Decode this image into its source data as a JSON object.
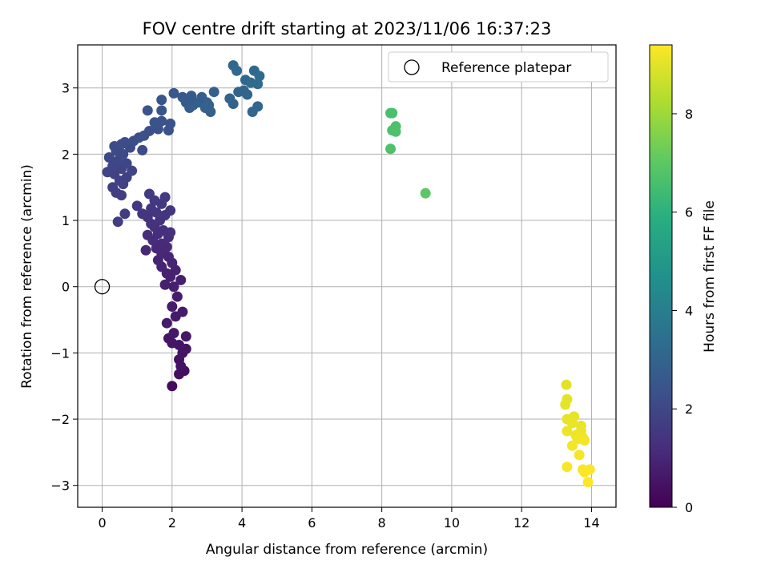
{
  "chart_data": {
    "type": "scatter",
    "title": "FOV centre drift starting at 2023/11/06 16:37:23",
    "xlabel": "Angular distance from reference (arcmin)",
    "ylabel": "Rotation from reference (arcmin)",
    "xlim": [
      -0.7,
      14.7
    ],
    "ylim": [
      -3.33,
      3.65
    ],
    "xticks": [
      0,
      2,
      4,
      6,
      8,
      10,
      12,
      14
    ],
    "yticks": [
      -3,
      -2,
      -1,
      0,
      1,
      2,
      3
    ],
    "grid": true,
    "legend": {
      "placement": "top-right",
      "entries": [
        "Reference platepar"
      ]
    },
    "reference_point": {
      "name": "Reference platepar",
      "x": 0,
      "y": 0
    },
    "colorbar": {
      "label": "Hours from first FF file",
      "range": [
        0,
        9.4
      ],
      "ticks": [
        0,
        2,
        4,
        6,
        8
      ],
      "colormap": "viridis"
    },
    "points": [
      {
        "x": 2.0,
        "y": -1.5,
        "h": 0.3
      },
      {
        "x": 2.2,
        "y": -1.32,
        "h": 0.35
      },
      {
        "x": 2.35,
        "y": -1.27,
        "h": 0.38
      },
      {
        "x": 2.25,
        "y": -1.2,
        "h": 0.42
      },
      {
        "x": 2.2,
        "y": -1.1,
        "h": 0.45
      },
      {
        "x": 2.3,
        "y": -1.0,
        "h": 0.48
      },
      {
        "x": 2.4,
        "y": -0.94,
        "h": 0.5
      },
      {
        "x": 2.2,
        "y": -0.88,
        "h": 0.52
      },
      {
        "x": 2.0,
        "y": -0.85,
        "h": 0.55
      },
      {
        "x": 1.9,
        "y": -0.78,
        "h": 0.57
      },
      {
        "x": 2.4,
        "y": -0.75,
        "h": 0.6
      },
      {
        "x": 2.05,
        "y": -0.7,
        "h": 0.62
      },
      {
        "x": 1.85,
        "y": -0.55,
        "h": 0.65
      },
      {
        "x": 2.1,
        "y": -0.45,
        "h": 0.68
      },
      {
        "x": 2.3,
        "y": -0.38,
        "h": 0.7
      },
      {
        "x": 2.0,
        "y": -0.3,
        "h": 0.72
      },
      {
        "x": 2.15,
        "y": -0.15,
        "h": 0.75
      },
      {
        "x": 2.05,
        "y": 0.0,
        "h": 0.78
      },
      {
        "x": 1.8,
        "y": 0.03,
        "h": 0.8
      },
      {
        "x": 2.25,
        "y": 0.1,
        "h": 0.82
      },
      {
        "x": 1.95,
        "y": 0.15,
        "h": 0.85
      },
      {
        "x": 1.85,
        "y": 0.2,
        "h": 0.88
      },
      {
        "x": 2.1,
        "y": 0.25,
        "h": 0.9
      },
      {
        "x": 1.7,
        "y": 0.3,
        "h": 0.92
      },
      {
        "x": 2.0,
        "y": 0.36,
        "h": 0.95
      },
      {
        "x": 1.6,
        "y": 0.4,
        "h": 0.97
      },
      {
        "x": 1.9,
        "y": 0.45,
        "h": 1.0
      },
      {
        "x": 1.7,
        "y": 0.5,
        "h": 1.02
      },
      {
        "x": 1.25,
        "y": 0.55,
        "h": 1.05
      },
      {
        "x": 1.55,
        "y": 0.58,
        "h": 1.08
      },
      {
        "x": 1.85,
        "y": 0.6,
        "h": 1.1
      },
      {
        "x": 1.7,
        "y": 0.65,
        "h": 1.12
      },
      {
        "x": 1.45,
        "y": 0.7,
        "h": 1.15
      },
      {
        "x": 1.9,
        "y": 0.75,
        "h": 1.18
      },
      {
        "x": 1.3,
        "y": 0.78,
        "h": 1.2
      },
      {
        "x": 1.6,
        "y": 0.8,
        "h": 1.22
      },
      {
        "x": 1.75,
        "y": 0.85,
        "h": 1.25
      },
      {
        "x": 1.5,
        "y": 0.9,
        "h": 1.28
      },
      {
        "x": 1.95,
        "y": 0.82,
        "h": 1.3
      },
      {
        "x": 1.4,
        "y": 0.95,
        "h": 1.32
      },
      {
        "x": 1.65,
        "y": 1.0,
        "h": 1.35
      },
      {
        "x": 1.3,
        "y": 1.05,
        "h": 1.38
      },
      {
        "x": 1.8,
        "y": 1.08,
        "h": 1.4
      },
      {
        "x": 1.15,
        "y": 1.1,
        "h": 1.42
      },
      {
        "x": 1.55,
        "y": 1.12,
        "h": 1.45
      },
      {
        "x": 1.95,
        "y": 1.15,
        "h": 1.48
      },
      {
        "x": 1.4,
        "y": 1.18,
        "h": 1.5
      },
      {
        "x": 1.0,
        "y": 1.22,
        "h": 1.52
      },
      {
        "x": 1.7,
        "y": 1.25,
        "h": 1.55
      },
      {
        "x": 1.5,
        "y": 1.3,
        "h": 1.57
      },
      {
        "x": 1.8,
        "y": 1.35,
        "h": 1.6
      },
      {
        "x": 1.35,
        "y": 1.4,
        "h": 1.62
      },
      {
        "x": 0.45,
        "y": 0.98,
        "h": 1.65
      },
      {
        "x": 0.65,
        "y": 1.1,
        "h": 1.68
      },
      {
        "x": 0.55,
        "y": 1.38,
        "h": 1.7
      },
      {
        "x": 0.4,
        "y": 1.42,
        "h": 1.72
      },
      {
        "x": 0.3,
        "y": 1.5,
        "h": 1.75
      },
      {
        "x": 0.6,
        "y": 1.55,
        "h": 1.78
      },
      {
        "x": 0.5,
        "y": 1.6,
        "h": 1.8
      },
      {
        "x": 0.7,
        "y": 1.65,
        "h": 1.82
      },
      {
        "x": 0.35,
        "y": 1.7,
        "h": 1.85
      },
      {
        "x": 0.15,
        "y": 1.73,
        "h": 1.88
      },
      {
        "x": 0.85,
        "y": 1.75,
        "h": 1.9
      },
      {
        "x": 0.55,
        "y": 1.78,
        "h": 1.92
      },
      {
        "x": 0.3,
        "y": 1.82,
        "h": 1.95
      },
      {
        "x": 0.7,
        "y": 1.86,
        "h": 1.98
      },
      {
        "x": 0.45,
        "y": 1.9,
        "h": 2.0
      },
      {
        "x": 0.2,
        "y": 1.95,
        "h": 2.02
      },
      {
        "x": 0.6,
        "y": 2.0,
        "h": 2.05
      },
      {
        "x": 0.4,
        "y": 2.05,
        "h": 2.08
      },
      {
        "x": 0.8,
        "y": 2.1,
        "h": 2.1
      },
      {
        "x": 1.15,
        "y": 2.06,
        "h": 2.12
      },
      {
        "x": 0.35,
        "y": 2.12,
        "h": 2.15
      },
      {
        "x": 0.55,
        "y": 2.15,
        "h": 2.18
      },
      {
        "x": 0.65,
        "y": 2.18,
        "h": 2.2
      },
      {
        "x": 0.9,
        "y": 2.2,
        "h": 2.22
      },
      {
        "x": 1.05,
        "y": 2.25,
        "h": 2.25
      },
      {
        "x": 1.2,
        "y": 2.28,
        "h": 2.28
      },
      {
        "x": 1.35,
        "y": 2.35,
        "h": 2.3
      },
      {
        "x": 1.6,
        "y": 2.38,
        "h": 2.32
      },
      {
        "x": 1.9,
        "y": 2.36,
        "h": 2.35
      },
      {
        "x": 1.5,
        "y": 2.48,
        "h": 2.38
      },
      {
        "x": 1.7,
        "y": 2.5,
        "h": 2.4
      },
      {
        "x": 1.95,
        "y": 2.46,
        "h": 2.42
      },
      {
        "x": 1.3,
        "y": 2.66,
        "h": 2.45
      },
      {
        "x": 1.7,
        "y": 2.66,
        "h": 2.48
      },
      {
        "x": 1.7,
        "y": 2.82,
        "h": 2.5
      },
      {
        "x": 2.05,
        "y": 2.92,
        "h": 2.55
      },
      {
        "x": 2.3,
        "y": 2.86,
        "h": 2.6
      },
      {
        "x": 2.55,
        "y": 2.88,
        "h": 2.65
      },
      {
        "x": 2.4,
        "y": 2.78,
        "h": 2.7
      },
      {
        "x": 2.6,
        "y": 2.74,
        "h": 2.72
      },
      {
        "x": 2.5,
        "y": 2.7,
        "h": 2.75
      },
      {
        "x": 2.85,
        "y": 2.86,
        "h": 2.78
      },
      {
        "x": 2.75,
        "y": 2.78,
        "h": 2.8
      },
      {
        "x": 3.0,
        "y": 2.78,
        "h": 2.82
      },
      {
        "x": 2.95,
        "y": 2.7,
        "h": 2.85
      },
      {
        "x": 3.1,
        "y": 2.64,
        "h": 2.88
      },
      {
        "x": 3.2,
        "y": 2.94,
        "h": 2.9
      },
      {
        "x": 3.05,
        "y": 2.74,
        "h": 2.92
      },
      {
        "x": 3.65,
        "y": 2.84,
        "h": 2.95
      },
      {
        "x": 3.75,
        "y": 2.76,
        "h": 2.98
      },
      {
        "x": 3.9,
        "y": 2.94,
        "h": 3.0
      },
      {
        "x": 4.15,
        "y": 2.9,
        "h": 3.02
      },
      {
        "x": 4.05,
        "y": 2.96,
        "h": 3.05
      },
      {
        "x": 4.3,
        "y": 2.64,
        "h": 3.08
      },
      {
        "x": 4.45,
        "y": 2.72,
        "h": 3.1
      },
      {
        "x": 3.75,
        "y": 3.34,
        "h": 3.12
      },
      {
        "x": 3.85,
        "y": 3.26,
        "h": 3.15
      },
      {
        "x": 4.35,
        "y": 3.26,
        "h": 3.18
      },
      {
        "x": 4.1,
        "y": 3.12,
        "h": 3.2
      },
      {
        "x": 4.25,
        "y": 3.08,
        "h": 3.22
      },
      {
        "x": 4.5,
        "y": 3.18,
        "h": 3.25
      },
      {
        "x": 4.45,
        "y": 3.06,
        "h": 3.28
      },
      {
        "x": 8.25,
        "y": 2.62,
        "h": 6.6
      },
      {
        "x": 8.3,
        "y": 2.62,
        "h": 6.62
      },
      {
        "x": 8.4,
        "y": 2.42,
        "h": 6.65
      },
      {
        "x": 8.3,
        "y": 2.36,
        "h": 6.68
      },
      {
        "x": 8.4,
        "y": 2.34,
        "h": 6.7
      },
      {
        "x": 8.25,
        "y": 2.08,
        "h": 6.72
      },
      {
        "x": 9.25,
        "y": 1.41,
        "h": 7.0
      },
      {
        "x": 13.28,
        "y": -1.48,
        "h": 9.0
      },
      {
        "x": 13.3,
        "y": -1.7,
        "h": 9.02
      },
      {
        "x": 13.25,
        "y": -1.78,
        "h": 9.04
      },
      {
        "x": 13.5,
        "y": -1.96,
        "h": 9.06
      },
      {
        "x": 13.3,
        "y": -2.0,
        "h": 9.08
      },
      {
        "x": 13.45,
        "y": -2.06,
        "h": 9.1
      },
      {
        "x": 13.7,
        "y": -2.1,
        "h": 9.12
      },
      {
        "x": 13.7,
        "y": -2.18,
        "h": 9.14
      },
      {
        "x": 13.3,
        "y": -2.18,
        "h": 9.16
      },
      {
        "x": 13.55,
        "y": -2.24,
        "h": 9.18
      },
      {
        "x": 13.75,
        "y": -2.28,
        "h": 9.2
      },
      {
        "x": 13.6,
        "y": -2.3,
        "h": 9.22
      },
      {
        "x": 13.8,
        "y": -2.32,
        "h": 9.24
      },
      {
        "x": 13.45,
        "y": -2.4,
        "h": 9.26
      },
      {
        "x": 13.65,
        "y": -2.54,
        "h": 9.28
      },
      {
        "x": 13.3,
        "y": -2.72,
        "h": 9.3
      },
      {
        "x": 13.75,
        "y": -2.76,
        "h": 9.32
      },
      {
        "x": 13.95,
        "y": -2.76,
        "h": 9.34
      },
      {
        "x": 13.8,
        "y": -2.8,
        "h": 9.36
      },
      {
        "x": 13.9,
        "y": -2.95,
        "h": 9.38
      }
    ]
  }
}
